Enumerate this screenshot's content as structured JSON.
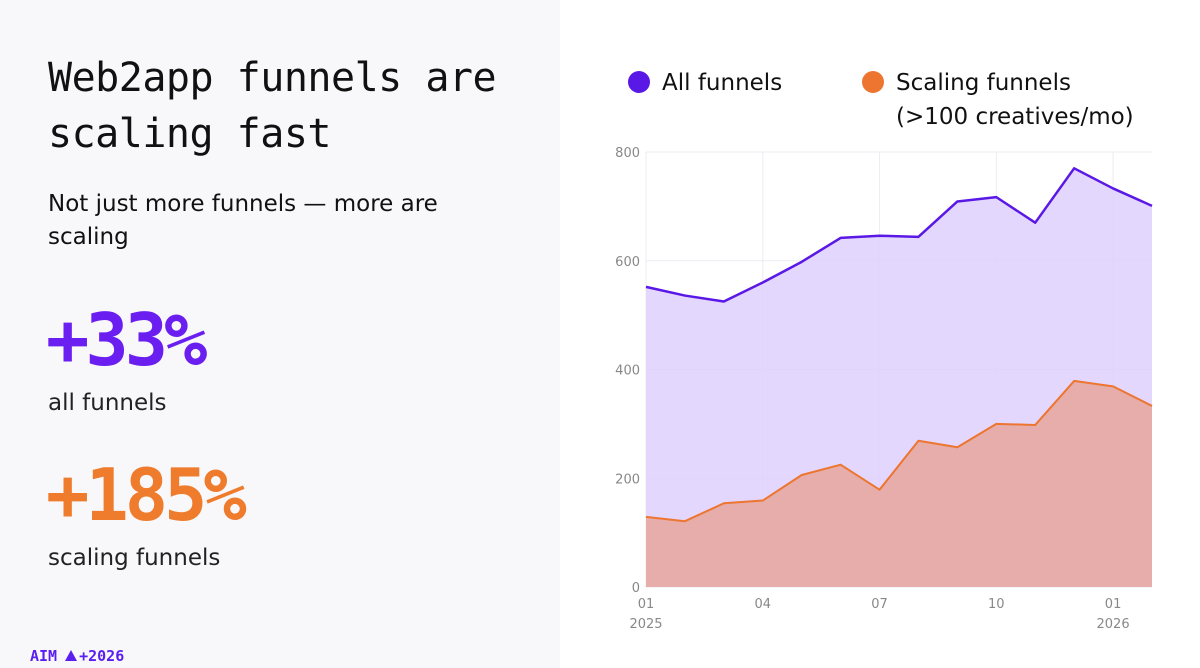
{
  "headline": "Web2app funnels are scaling fast",
  "subtitle": "Not just more funnels — more are scaling",
  "stats": [
    {
      "value": "+33%",
      "label": "all funnels",
      "color": "#6a1ff0"
    },
    {
      "value": "+185%",
      "label": "scaling funnels",
      "color": "#ef7c2c"
    }
  ],
  "brand": {
    "name": "AIM",
    "tag": "+2026",
    "color": "#5a1ff0"
  },
  "colors": {
    "all_line": "#5a18e6",
    "all_fill": "#dfd0fd",
    "scaling_line": "#ed7530",
    "scaling_fill": "#e6adaa",
    "grid": "#ececf2"
  },
  "chart_data": {
    "type": "area",
    "title": "",
    "xlabel": "",
    "ylabel": "",
    "x": [
      "2025-01",
      "2025-02",
      "2025-03",
      "2025-04",
      "2025-05",
      "2025-06",
      "2025-07",
      "2025-08",
      "2025-09",
      "2025-10",
      "2025-11",
      "2025-12",
      "2026-01",
      "2026-02"
    ],
    "xticks": [
      {
        "x": "2025-01",
        "label": "01",
        "year": "2025"
      },
      {
        "x": "2025-04",
        "label": "04",
        "year": ""
      },
      {
        "x": "2025-07",
        "label": "07",
        "year": ""
      },
      {
        "x": "2025-10",
        "label": "10",
        "year": ""
      },
      {
        "x": "2026-01",
        "label": "01",
        "year": "2026"
      }
    ],
    "ylim": [
      0,
      800
    ],
    "yticks": [
      0,
      200,
      400,
      600,
      800
    ],
    "grid": true,
    "legend_position": "top",
    "series": [
      {
        "name": "All funnels",
        "values": [
          552,
          536,
          525,
          560,
          598,
          642,
          646,
          644,
          709,
          717,
          670,
          770,
          733,
          701
        ]
      },
      {
        "name": "Scaling funnels",
        "name_line2": "(>100 creatives/mo)",
        "values": [
          129,
          121,
          154,
          159,
          206,
          225,
          179,
          269,
          257,
          300,
          298,
          379,
          369,
          333
        ]
      }
    ]
  }
}
